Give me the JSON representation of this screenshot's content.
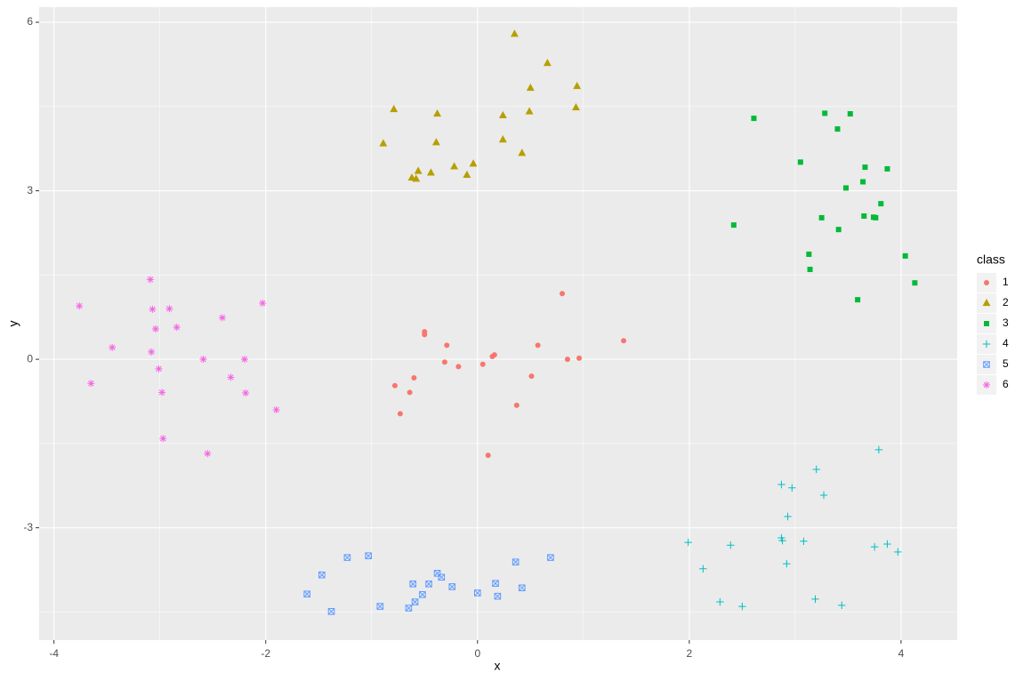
{
  "chart_data": {
    "type": "scatter",
    "xlabel": "x",
    "ylabel": "y",
    "legend_title": "class",
    "legend": "right",
    "grid": true,
    "xlim": [
      -4.14,
      4.53
    ],
    "ylim": [
      -5.0,
      6.27
    ],
    "xticks": [
      -4,
      -2,
      0,
      2,
      4
    ],
    "yticks": [
      -3,
      0,
      3,
      6
    ],
    "series": [
      {
        "name": "1",
        "color": "#F8766D",
        "shape": "circle",
        "x": [
          0.8,
          -0.5,
          -0.5,
          -0.29,
          0.57,
          1.38,
          0.16,
          0.14,
          -0.31,
          -0.18,
          0.05,
          0.85,
          0.96,
          -0.6,
          0.51,
          -0.78,
          -0.64,
          0.37,
          -0.73,
          0.1
        ],
        "values": [
          1.17,
          0.49,
          0.44,
          0.25,
          0.25,
          0.33,
          0.08,
          0.05,
          -0.05,
          -0.13,
          -0.09,
          0,
          0.02,
          -0.33,
          -0.3,
          -0.47,
          -0.59,
          -0.82,
          -0.97,
          -1.71
        ]
      },
      {
        "name": "2",
        "color": "#B79F00",
        "shape": "triangle",
        "x": [
          0.35,
          0.66,
          0.5,
          0.94,
          -0.79,
          0.49,
          0.93,
          -0.38,
          0.24,
          -0.89,
          -0.39,
          0.24,
          0.42,
          -0.22,
          -0.04,
          -0.44,
          -0.56,
          -0.62,
          -0.58,
          -0.1
        ],
        "values": [
          5.79,
          5.27,
          4.83,
          4.86,
          4.45,
          4.41,
          4.48,
          4.37,
          4.34,
          3.84,
          3.86,
          3.91,
          3.67,
          3.43,
          3.48,
          3.32,
          3.35,
          3.23,
          3.21,
          3.28
        ]
      },
      {
        "name": "3",
        "color": "#00BA38",
        "shape": "square",
        "x": [
          2.61,
          3.28,
          3.52,
          3.4,
          3.05,
          3.66,
          3.87,
          3.64,
          3.48,
          3.81,
          3.25,
          3.65,
          3.76,
          3.74,
          2.42,
          3.41,
          3.13,
          4.04,
          3.14,
          4.13,
          3.59
        ],
        "values": [
          4.29,
          4.38,
          4.37,
          4.1,
          3.51,
          3.42,
          3.39,
          3.16,
          3.05,
          2.77,
          2.52,
          2.55,
          2.52,
          2.53,
          2.39,
          2.31,
          1.87,
          1.84,
          1.6,
          1.36,
          1.06
        ]
      },
      {
        "name": "4",
        "color": "#00BFC4",
        "shape": "plus",
        "x": [
          3.79,
          3.2,
          2.87,
          2.97,
          3.27,
          2.93,
          2.87,
          2.88,
          3.08,
          1.99,
          2.39,
          3.87,
          3.75,
          3.97,
          2.92,
          2.13,
          3.19,
          2.29,
          2.5,
          3.44
        ],
        "values": [
          -1.61,
          -1.96,
          -2.23,
          -2.29,
          -2.42,
          -2.8,
          -3.18,
          -3.23,
          -3.24,
          -3.26,
          -3.31,
          -3.29,
          -3.34,
          -3.43,
          -3.64,
          -3.73,
          -4.27,
          -4.32,
          -4.4,
          -4.38
        ]
      },
      {
        "name": "5",
        "color": "#619CFF",
        "shape": "square-cross",
        "x": [
          -1.23,
          -1.03,
          0.69,
          0.36,
          -1.47,
          -0.38,
          -0.34,
          -0.61,
          -0.46,
          0.17,
          -0.24,
          0.42,
          -1.61,
          0.0,
          -0.52,
          0.19,
          -0.59,
          -0.92,
          -0.65,
          -1.38
        ],
        "values": [
          -3.53,
          -3.5,
          -3.53,
          -3.61,
          -3.84,
          -3.81,
          -3.88,
          -4.0,
          -4.0,
          -3.99,
          -4.05,
          -4.07,
          -4.18,
          -4.16,
          -4.19,
          -4.22,
          -4.32,
          -4.4,
          -4.43,
          -4.49
        ]
      },
      {
        "name": "6",
        "color": "#F564E3",
        "shape": "asterisk",
        "x": [
          -3.09,
          -3.76,
          -3.07,
          -2.91,
          -2.03,
          -2.41,
          -3.04,
          -2.84,
          -3.45,
          -3.08,
          -2.59,
          -2.2,
          -3.01,
          -2.33,
          -3.65,
          -2.19,
          -2.98,
          -1.9,
          -2.97,
          -2.55
        ],
        "values": [
          1.42,
          0.95,
          0.89,
          0.9,
          1.0,
          0.74,
          0.54,
          0.57,
          0.21,
          0.13,
          0.0,
          0.0,
          -0.17,
          -0.32,
          -0.43,
          -0.6,
          -0.59,
          -0.9,
          -1.41,
          -1.68
        ]
      }
    ]
  }
}
